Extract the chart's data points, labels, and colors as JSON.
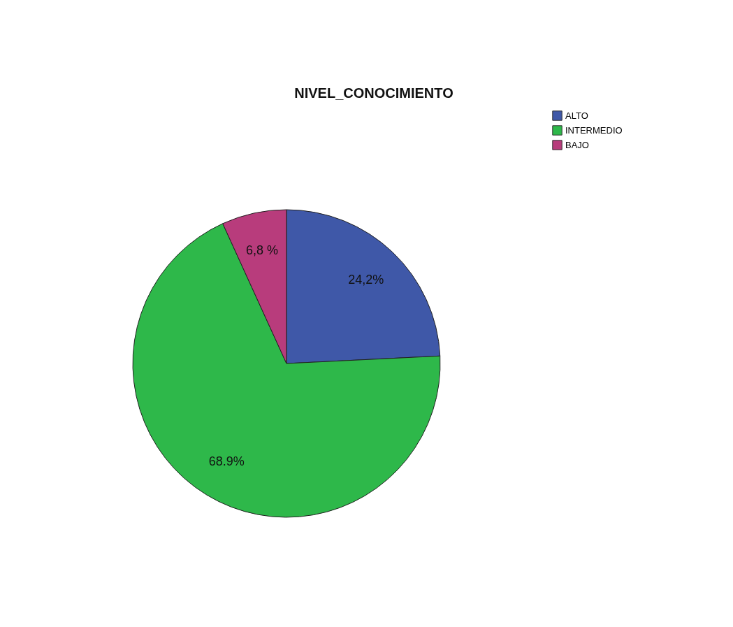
{
  "chart_data": {
    "type": "pie",
    "title": "NIVEL_CONOCIMIENTO",
    "categories": [
      "ALTO",
      "INTERMEDIO",
      "BAJO"
    ],
    "values": [
      24.2,
      68.9,
      6.8
    ],
    "colors": [
      "#3f58a8",
      "#2eb84a",
      "#b83c7c"
    ],
    "value_labels": [
      "24,2%",
      "68.9%",
      "6,8 %"
    ],
    "legend": "top right"
  }
}
